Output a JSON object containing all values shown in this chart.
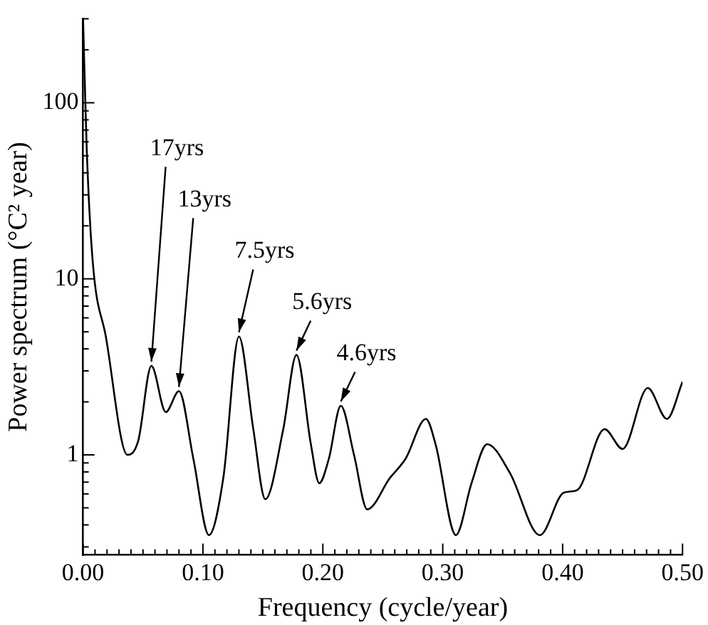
{
  "chart_data": {
    "type": "line",
    "xlabel": "Frequency (cycle/year)",
    "ylabel": "Power spectrum (°C² year)",
    "log": "y",
    "grid": false,
    "marker": "none",
    "line_style": "solid",
    "xlim": [
      0,
      0.5
    ],
    "ylim": [
      0.27,
      300
    ],
    "xticks": [
      {
        "value": 0,
        "label": "0.00"
      },
      {
        "value": 0.01,
        "label": null
      },
      {
        "value": 0.02,
        "label": null
      },
      {
        "value": 0.03,
        "label": null
      },
      {
        "value": 0.04,
        "label": null
      },
      {
        "value": 0.05,
        "label": null
      },
      {
        "value": 0.06,
        "label": null
      },
      {
        "value": 0.07,
        "label": null
      },
      {
        "value": 0.08,
        "label": null
      },
      {
        "value": 0.09,
        "label": null
      },
      {
        "value": 0.1,
        "label": "0.10"
      },
      {
        "value": 0.11,
        "label": null
      },
      {
        "value": 0.12,
        "label": null
      },
      {
        "value": 0.13,
        "label": null
      },
      {
        "value": 0.14,
        "label": null
      },
      {
        "value": 0.15,
        "label": null
      },
      {
        "value": 0.16,
        "label": null
      },
      {
        "value": 0.17,
        "label": null
      },
      {
        "value": 0.18,
        "label": null
      },
      {
        "value": 0.19,
        "label": null
      },
      {
        "value": 0.2,
        "label": "0.20"
      },
      {
        "value": 0.21,
        "label": null
      },
      {
        "value": 0.22,
        "label": null
      },
      {
        "value": 0.23,
        "label": null
      },
      {
        "value": 0.24,
        "label": null
      },
      {
        "value": 0.25,
        "label": null
      },
      {
        "value": 0.26,
        "label": null
      },
      {
        "value": 0.27,
        "label": null
      },
      {
        "value": 0.28,
        "label": null
      },
      {
        "value": 0.29,
        "label": null
      },
      {
        "value": 0.3,
        "label": "0.30"
      },
      {
        "value": 0.31,
        "label": null
      },
      {
        "value": 0.32,
        "label": null
      },
      {
        "value": 0.33,
        "label": null
      },
      {
        "value": 0.34,
        "label": null
      },
      {
        "value": 0.35,
        "label": null
      },
      {
        "value": 0.36,
        "label": null
      },
      {
        "value": 0.37,
        "label": null
      },
      {
        "value": 0.38,
        "label": null
      },
      {
        "value": 0.39,
        "label": null
      },
      {
        "value": 0.4,
        "label": "0.40"
      },
      {
        "value": 0.41,
        "label": null
      },
      {
        "value": 0.42,
        "label": null
      },
      {
        "value": 0.43,
        "label": null
      },
      {
        "value": 0.44,
        "label": null
      },
      {
        "value": 0.45,
        "label": null
      },
      {
        "value": 0.46,
        "label": null
      },
      {
        "value": 0.47,
        "label": null
      },
      {
        "value": 0.48,
        "label": null
      },
      {
        "value": 0.49,
        "label": null
      },
      {
        "value": 0.5,
        "label": "0.50"
      }
    ],
    "yticks": [
      {
        "value": 0.3,
        "label": null
      },
      {
        "value": 0.4,
        "label": null
      },
      {
        "value": 0.5,
        "label": null
      },
      {
        "value": 0.6,
        "label": null
      },
      {
        "value": 0.7,
        "label": null
      },
      {
        "value": 0.8,
        "label": null
      },
      {
        "value": 0.9,
        "label": null
      },
      1,
      {
        "value": 2,
        "label": null
      },
      {
        "value": 3,
        "label": null
      },
      {
        "value": 4,
        "label": null
      },
      {
        "value": 5,
        "label": null
      },
      {
        "value": 6,
        "label": null
      },
      {
        "value": 7,
        "label": null
      },
      {
        "value": 8,
        "label": null
      },
      {
        "value": 9,
        "label": null
      },
      10,
      {
        "value": 20,
        "label": null
      },
      {
        "value": 30,
        "label": null
      },
      {
        "value": 40,
        "label": null
      },
      {
        "value": 50,
        "label": null
      },
      {
        "value": 60,
        "label": null
      },
      {
        "value": 70,
        "label": null
      },
      {
        "value": 80,
        "label": null
      },
      {
        "value": 90,
        "label": null
      },
      100,
      {
        "value": 200,
        "label": null
      },
      {
        "value": 300,
        "label": null
      }
    ],
    "series": [
      {
        "color": "#000000",
        "x": [
          0,
          0.003,
          0.008,
          0.019,
          0.037,
          0.046,
          0.057,
          0.069,
          0.08,
          0.092,
          0.105,
          0.117,
          0.13,
          0.142,
          0.152,
          0.167,
          0.178,
          0.19,
          0.197,
          0.205,
          0.215,
          0.226,
          0.237,
          0.256,
          0.269,
          0.286,
          0.294,
          0.311,
          0.324,
          0.337,
          0.356,
          0.381,
          0.401,
          0.412,
          0.435,
          0.45,
          0.471,
          0.487,
          0.5
        ],
        "values": [
          300,
          56,
          12.7,
          4.7,
          1,
          1.2,
          3.2,
          1.75,
          2.3,
          0.95,
          0.35,
          0.74,
          4.7,
          1.4,
          0.56,
          1.4,
          3.7,
          1.15,
          0.69,
          0.95,
          1.9,
          1,
          0.49,
          0.74,
          0.95,
          1.6,
          1.15,
          0.35,
          0.69,
          1.15,
          0.79,
          0.35,
          0.61,
          0.63,
          1.4,
          1.08,
          2.4,
          1.6,
          2.6
        ]
      }
    ],
    "annotations": [
      {
        "text": "17yrs",
        "x": 0.057,
        "y": 3.2
      },
      {
        "text": "13yrs",
        "x": 0.08,
        "y": 2.3
      },
      {
        "text": "7.5yrs",
        "x": 0.13,
        "y": 4.7
      },
      {
        "text": "5.6yrs",
        "x": 0.178,
        "y": 3.7
      },
      {
        "text": "4.6yrs",
        "x": 0.215,
        "y": 1.9
      }
    ]
  }
}
